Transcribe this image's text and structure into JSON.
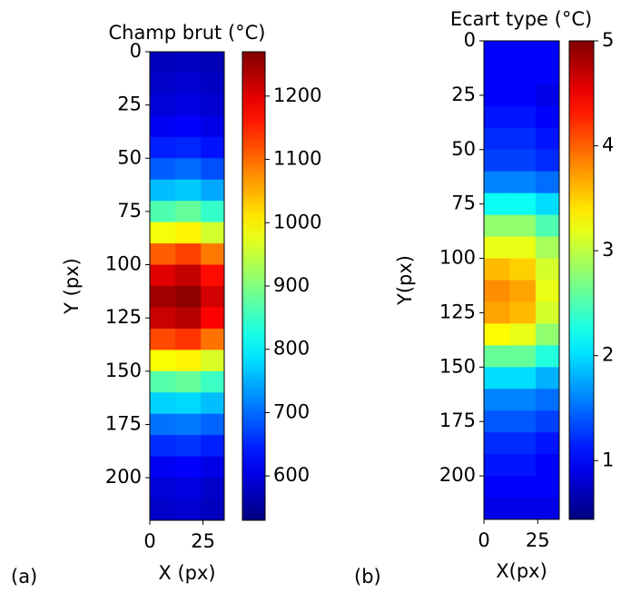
{
  "chart_data": [
    {
      "type": "heatmap",
      "title": "Champ brut (°C)",
      "xlabel": "X (px)",
      "ylabel": "Y (px)",
      "panel_label": "(a)",
      "colormap": "jet",
      "xbins": [
        0,
        12,
        24,
        35
      ],
      "ybins": [
        0,
        10,
        20,
        30,
        40,
        50,
        60,
        70,
        80,
        90,
        100,
        110,
        120,
        130,
        140,
        150,
        160,
        170,
        180,
        190,
        200,
        210,
        220
      ],
      "z": [
        [
          575,
          580,
          570
        ],
        [
          585,
          590,
          580
        ],
        [
          595,
          600,
          590
        ],
        [
          615,
          620,
          605
        ],
        [
          645,
          650,
          635
        ],
        [
          690,
          700,
          680
        ],
        [
          760,
          770,
          745
        ],
        [
          865,
          880,
          845
        ],
        [
          985,
          1000,
          960
        ],
        [
          1110,
          1130,
          1090
        ],
        [
          1200,
          1220,
          1170
        ],
        [
          1245,
          1260,
          1210
        ],
        [
          1215,
          1230,
          1180
        ],
        [
          1125,
          1140,
          1095
        ],
        [
          990,
          1000,
          965
        ],
        [
          870,
          880,
          850
        ],
        [
          775,
          780,
          760
        ],
        [
          705,
          710,
          695
        ],
        [
          655,
          660,
          645
        ],
        [
          615,
          620,
          605
        ],
        [
          595,
          600,
          585
        ],
        [
          585,
          590,
          575
        ]
      ],
      "xlim": [
        0,
        35
      ],
      "ylim": [
        0,
        220
      ],
      "xticks": [
        0,
        25
      ],
      "yticks": [
        0,
        25,
        50,
        75,
        100,
        125,
        150,
        175,
        200
      ],
      "clim": [
        530,
        1270
      ],
      "cticks": [
        600,
        700,
        800,
        900,
        1000,
        1100,
        1200
      ]
    },
    {
      "type": "heatmap",
      "title": "Ecart type (°C)",
      "xlabel": "X(px)",
      "ylabel": "Y(px)",
      "panel_label": "(b)",
      "colormap": "jet",
      "xbins": [
        0,
        12,
        24,
        35
      ],
      "ybins": [
        0,
        10,
        20,
        30,
        40,
        50,
        60,
        70,
        80,
        90,
        100,
        110,
        120,
        130,
        140,
        150,
        160,
        170,
        180,
        190,
        200,
        210,
        220
      ],
      "z": [
        [
          1.0,
          1.0,
          1.0
        ],
        [
          1.0,
          1.0,
          1.0
        ],
        [
          1.0,
          1.0,
          0.9
        ],
        [
          1.1,
          1.1,
          1.0
        ],
        [
          1.2,
          1.2,
          1.1
        ],
        [
          1.3,
          1.3,
          1.2
        ],
        [
          1.6,
          1.6,
          1.5
        ],
        [
          2.2,
          2.2,
          2.0
        ],
        [
          2.8,
          2.8,
          2.5
        ],
        [
          3.2,
          3.2,
          2.9
        ],
        [
          3.6,
          3.5,
          3.1
        ],
        [
          3.8,
          3.7,
          3.2
        ],
        [
          3.7,
          3.6,
          3.1
        ],
        [
          3.3,
          3.2,
          2.8
        ],
        [
          2.6,
          2.6,
          2.3
        ],
        [
          2.0,
          2.0,
          1.8
        ],
        [
          1.6,
          1.6,
          1.5
        ],
        [
          1.4,
          1.4,
          1.3
        ],
        [
          1.2,
          1.2,
          1.1
        ],
        [
          1.1,
          1.1,
          1.0
        ],
        [
          1.0,
          1.0,
          1.0
        ],
        [
          0.9,
          0.9,
          0.9
        ]
      ],
      "xlim": [
        0,
        35
      ],
      "ylim": [
        0,
        220
      ],
      "xticks": [
        0,
        25
      ],
      "yticks": [
        0,
        25,
        50,
        75,
        100,
        125,
        150,
        175,
        200
      ],
      "clim": [
        0.44,
        5
      ],
      "cticks": [
        1,
        2,
        3,
        4,
        5
      ]
    }
  ]
}
